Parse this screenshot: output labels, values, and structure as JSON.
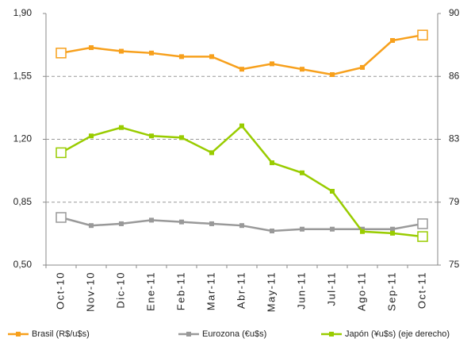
{
  "chart_data": {
    "type": "line",
    "categories": [
      "Oct-10",
      "Nov-10",
      "Dic-10",
      "Ene-11",
      "Feb-11",
      "Mar-11",
      "Abr-11",
      "May-11",
      "Jun-11",
      "Jul-11",
      "Ago-11",
      "Sep-11",
      "Oct-11"
    ],
    "series": [
      {
        "name": "Brasil (R$/u$s)",
        "color": "#f7a01c",
        "values": [
          1.68,
          1.71,
          1.69,
          1.68,
          1.66,
          1.66,
          1.59,
          1.62,
          1.59,
          1.56,
          1.6,
          1.75,
          1.78
        ]
      },
      {
        "name": "Eurozona (€u$s)",
        "color": "#999999",
        "values": [
          0.765,
          0.72,
          0.73,
          0.75,
          0.74,
          0.73,
          0.72,
          0.69,
          0.7,
          0.7,
          0.7,
          0.7,
          0.73
        ]
      },
      {
        "name": "Japón (¥u$s) (eje derecho)",
        "color": "#99cc00",
        "axis": "y2",
        "values": [
          81.7,
          82.7,
          83.2,
          82.7,
          82.6,
          81.7,
          83.3,
          81.1,
          80.5,
          79.4,
          77.0,
          76.9,
          76.7
        ]
      }
    ],
    "ylim": [
      0.5,
      1.9
    ],
    "yticks": [
      {
        "value": 0.5,
        "label": "0,50"
      },
      {
        "value": 0.85,
        "label": "0,85"
      },
      {
        "value": 1.2,
        "label": "1,20"
      },
      {
        "value": 1.55,
        "label": "1,55"
      },
      {
        "value": 1.9,
        "label": "1,90"
      }
    ],
    "y2lim": [
      75,
      90
    ],
    "y2ticks": [
      75,
      {
        "value": 78.75,
        "label": "79"
      },
      {
        "value": 82.5,
        "label": "83"
      },
      {
        "value": 86.25,
        "label": "86"
      },
      90
    ],
    "grid": true,
    "legend": "bottom"
  }
}
